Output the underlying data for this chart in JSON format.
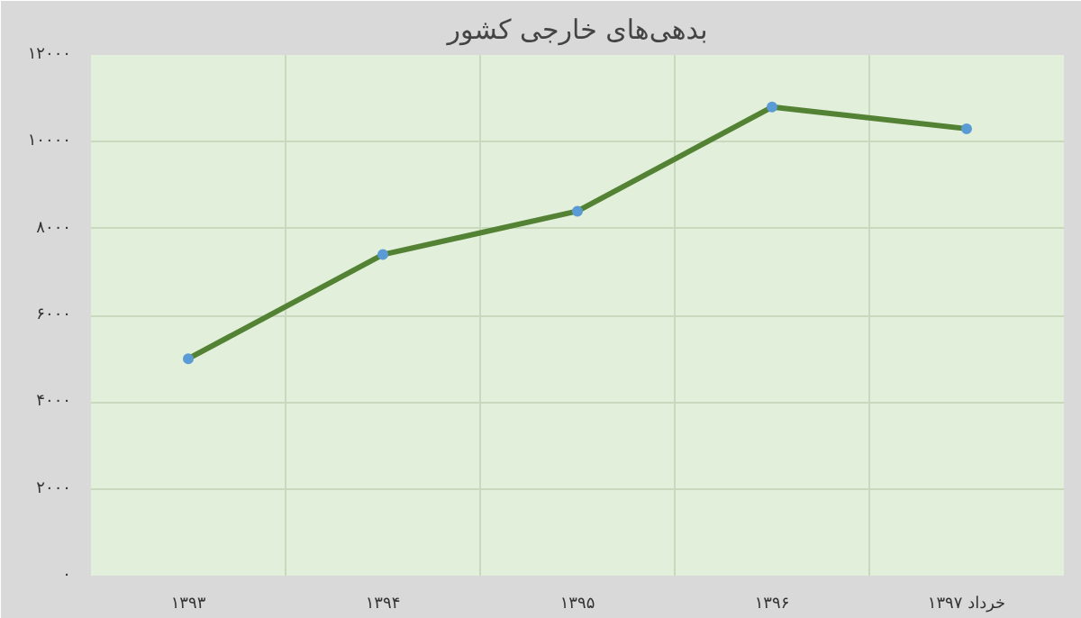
{
  "chart_data": {
    "type": "line",
    "title": "بدهی‌های خارجی کشور",
    "categories": [
      "۱۳۹۳",
      "۱۳۹۴",
      "۱۳۹۵",
      "۱۳۹۶",
      "خرداد ۱۳۹۷"
    ],
    "series": [
      {
        "color": "#548235",
        "values": [
          5000,
          7400,
          8400,
          10800,
          10300
        ]
      }
    ],
    "ylim": [
      0,
      12000
    ],
    "yticks": [
      {
        "value": 0,
        "label": "۰"
      },
      {
        "value": 2000,
        "label": "۲۰۰۰"
      },
      {
        "value": 4000,
        "label": "۴۰۰۰"
      },
      {
        "value": 6000,
        "label": "۶۰۰۰"
      },
      {
        "value": 8000,
        "label": "۸۰۰۰"
      },
      {
        "value": 10000,
        "label": "۱۰۰۰۰"
      },
      {
        "value": 12000,
        "label": "۱۲۰۰۰"
      }
    ],
    "grid": true,
    "marker": "circle",
    "line_style": "solid"
  }
}
